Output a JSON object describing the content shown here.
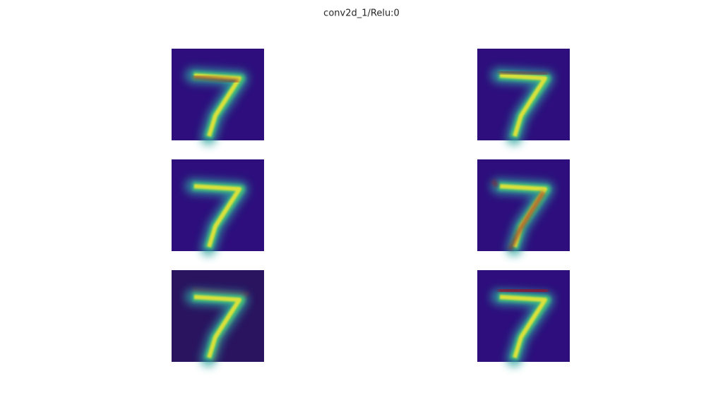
{
  "title": "conv2d_1/Relu:0"
}
